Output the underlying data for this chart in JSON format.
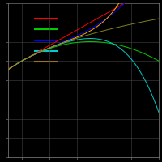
{
  "xmin": -0.2,
  "xmax": 2.0,
  "ymin": -2.5,
  "ymax": 1.5,
  "background_color": "#000000",
  "grid_color": "#444444",
  "axes_color": "#888888",
  "line_colors": {
    "actual": "#808020",
    "p1": "#ff0000",
    "p2": "#00cc00",
    "p3": "#0000ff",
    "p4": "#00cccc",
    "p5": "#ffaa00"
  },
  "legend_colors": [
    "#ff0000",
    "#00cc00",
    "#0000ff",
    "#00cccc",
    "#ffaa00"
  ],
  "figsize": [
    2.0,
    2.0
  ],
  "dpi": 100
}
